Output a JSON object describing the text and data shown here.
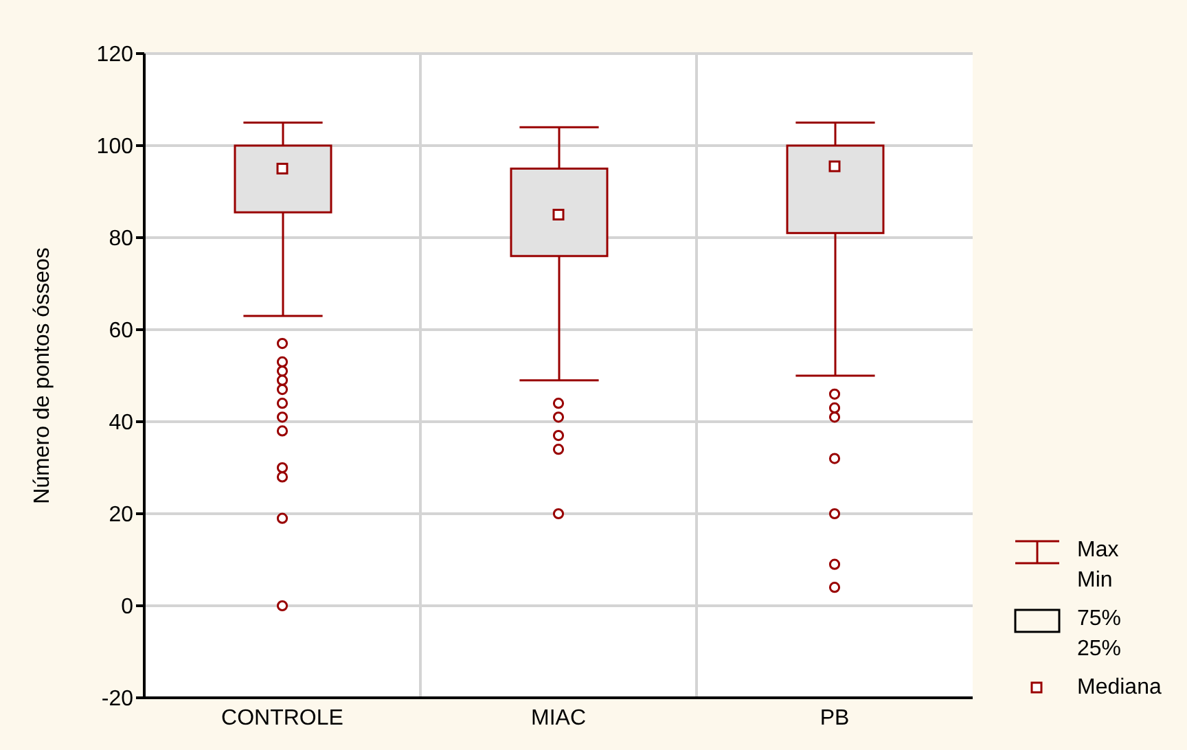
{
  "chart_data": {
    "type": "box",
    "ylabel": "Número de pontos ósseos",
    "categories": [
      "CONTROLE",
      "MIAC",
      "PB"
    ],
    "color": "#990000",
    "boxes": [
      {
        "low": 63,
        "q1": 85.5,
        "median": 95,
        "q3": 100,
        "high": 105,
        "outliers": [
          57,
          53,
          51,
          49,
          47,
          44,
          41,
          38,
          30,
          28,
          19,
          0
        ]
      },
      {
        "low": 49,
        "q1": 76,
        "median": 85,
        "q3": 95,
        "high": 104,
        "outliers": [
          44,
          41,
          37,
          34,
          20
        ]
      },
      {
        "low": 50,
        "q1": 81,
        "median": 95.5,
        "q3": 100,
        "high": 105,
        "outliers": [
          46,
          43,
          41,
          32,
          20,
          9,
          4
        ]
      }
    ],
    "ylim": [
      -20,
      120
    ],
    "yticks": [
      -20,
      0,
      20,
      40,
      60,
      80,
      100,
      120
    ],
    "grid": true,
    "annotations": [
      "Max",
      "Min",
      "75%",
      "25%",
      "Mediana"
    ]
  }
}
